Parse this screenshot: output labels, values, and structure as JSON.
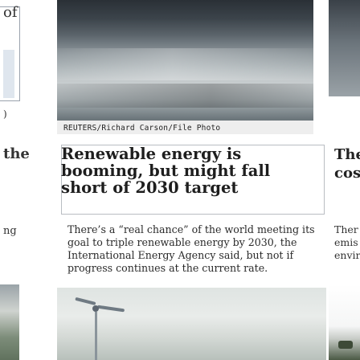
{
  "left_column": {
    "word_top": "of",
    "word_mid_small": ")",
    "word_the": "the",
    "word_ng": "ng"
  },
  "photo_top": {
    "credit": "REUTERS/Richard Carson/File Photo"
  },
  "headline": "Renewable energy is booming, but might fall short of 2030 target",
  "summary": "There’s a “real chance” of the world meeting its goal to triple renewable energy by 2030, the International Energy Agency said, but not if progress continues at the current rate.",
  "right_column": {
    "headline_lines": [
      "The",
      "cos"
    ],
    "summary_lines": [
      "Ther",
      "emis",
      "envir"
    ]
  }
}
